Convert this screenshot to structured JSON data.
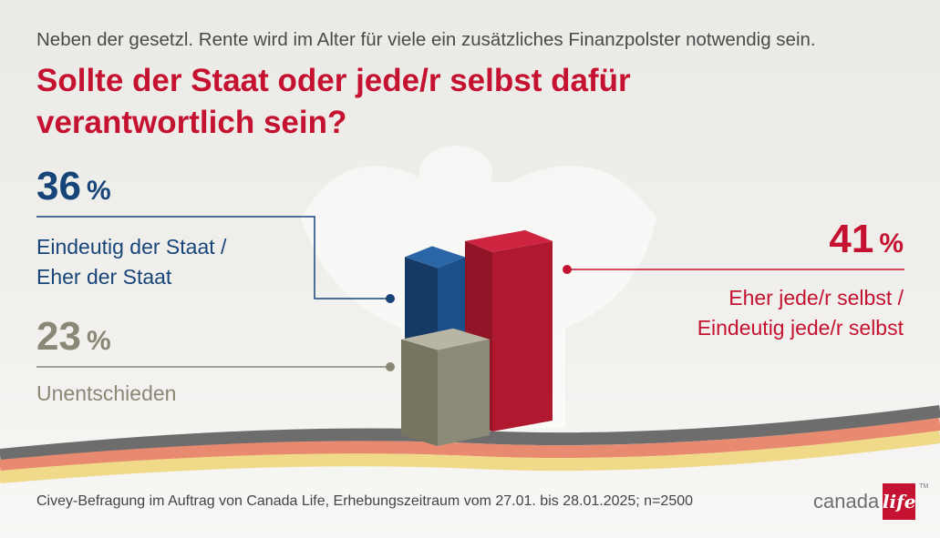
{
  "intro": "Neben der gesetzl. Rente wird im Alter für viele ein zusätzliches Finanzpolster notwendig sein.",
  "question": "Sollte der Staat oder jede/r selbst dafür verantwortlich sein?",
  "chart_data": {
    "type": "bar",
    "title": "Sollte der Staat oder jede/r selbst dafür verantwortlich sein?",
    "categories": [
      "Eindeutig der Staat / Eher der Staat",
      "Unentschieden",
      "Eher jede/r selbst / Eindeutig jede/r selbst"
    ],
    "values": [
      36,
      23,
      41
    ],
    "unit": "%",
    "colors": {
      "staat": "#17457a",
      "unentschieden": "#8a8776",
      "selbst": "#b0182f"
    }
  },
  "labels": {
    "staat": {
      "value": "36",
      "unit": "%",
      "line1": "Eindeutig der Staat /",
      "line2": "Eher der Staat"
    },
    "unentschieden": {
      "value": "23",
      "unit": "%",
      "line1": "Unentschieden"
    },
    "selbst": {
      "value": "41",
      "unit": "%",
      "line1": "Eher jede/r selbst /",
      "line2": "Eindeutig jede/r selbst"
    }
  },
  "source": "Civey-Befragung im Auftrag von Canada Life, Erhebungszeitraum vom 27.01. bis 28.01.2025; n=2500",
  "logo": {
    "word": "canada",
    "script": "life",
    "tm": "TM"
  }
}
